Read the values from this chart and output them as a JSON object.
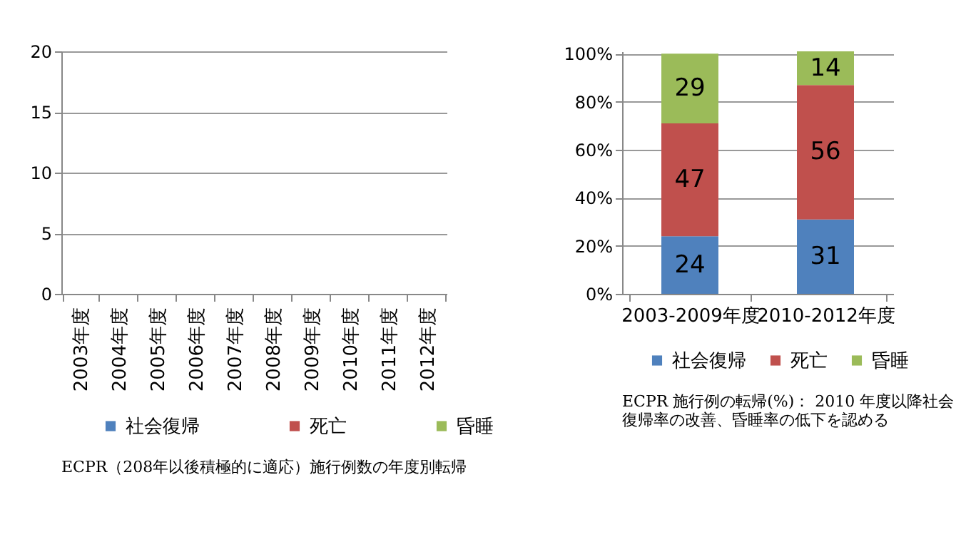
{
  "chart_data": [
    {
      "type": "bar",
      "stacked": true,
      "categories": [
        "2003年度",
        "2004年度",
        "2005年度",
        "2006年度",
        "2007年度",
        "2008年度",
        "2009年度",
        "2010年度",
        "2011年度",
        "2012年度"
      ],
      "series": [
        {
          "name": "社会復帰",
          "color": "#4f81bd",
          "values": [
            null,
            null,
            null,
            null,
            null,
            null,
            null,
            null,
            null,
            null
          ]
        },
        {
          "name": "死亡",
          "color": "#c0504d",
          "values": [
            null,
            null,
            null,
            null,
            null,
            null,
            null,
            null,
            null,
            null
          ]
        },
        {
          "name": "昏睡",
          "color": "#9bbb59",
          "values": [
            null,
            null,
            null,
            null,
            null,
            null,
            null,
            null,
            null,
            null
          ]
        }
      ],
      "ylim": [
        0,
        20
      ],
      "yticks": [
        0,
        5,
        10,
        15,
        20
      ],
      "grid": "y",
      "legend": "bottom",
      "annotations": [
        "ECPR（208年以後積極的に適応）施行例数の年度別転帰"
      ]
    },
    {
      "type": "bar",
      "stacked": true,
      "categories": [
        "2003-2009年度",
        "2010-2012年度"
      ],
      "series": [
        {
          "name": "社会復帰",
          "color": "#4f81bd",
          "values": [
            24,
            31
          ]
        },
        {
          "name": "死亡",
          "color": "#c0504d",
          "values": [
            47,
            56
          ]
        },
        {
          "name": "昏睡",
          "color": "#9bbb59",
          "values": [
            29,
            14
          ]
        }
      ],
      "ylim": [
        0,
        101
      ],
      "yticks": [
        {
          "value": 0,
          "label": "0%"
        },
        {
          "value": 20,
          "label": "20%"
        },
        {
          "value": 40,
          "label": "40%"
        },
        {
          "value": 60,
          "label": "60%"
        },
        {
          "value": 80,
          "label": "80%"
        },
        {
          "value": 100,
          "label": "100%"
        }
      ],
      "grid": "y",
      "legend": "bottom",
      "data_labels": true,
      "annotations": [
        "ECPR 施行例の転帰(%)： 2010 年度以降社会",
        "復帰率の改善、昏睡率の低下を認める"
      ]
    }
  ]
}
